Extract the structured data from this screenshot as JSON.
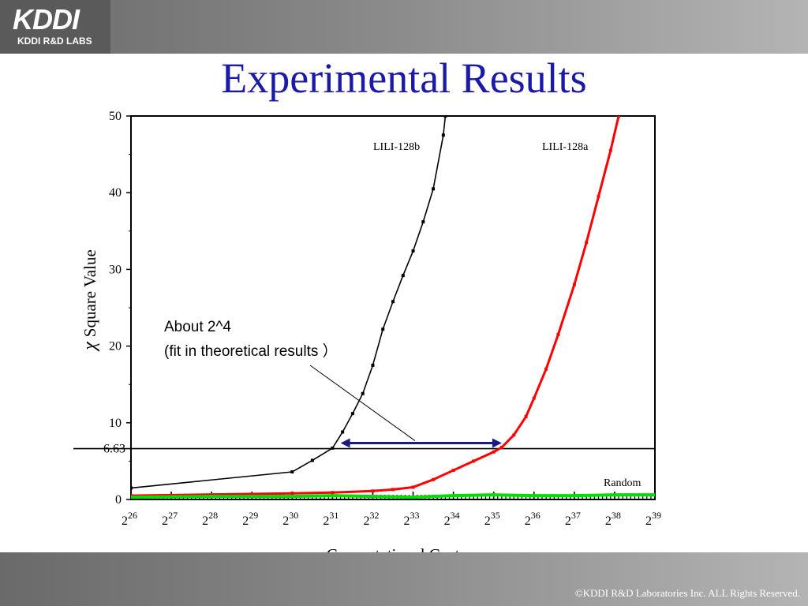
{
  "header": {
    "logo_main": "KDDI",
    "logo_sub": "KDDI R&D LABS",
    "title": "Experimental Results"
  },
  "footer": {
    "copyright": "©KDDI R&D Laboratories Inc. ALL Rights Reserved."
  },
  "chart_data": {
    "type": "line",
    "title": "",
    "xlabel": "Computational Cost",
    "ylabel": "Square Value",
    "ylabel_symbol": "χ",
    "xlim": [
      26,
      39
    ],
    "x_scale": "log2",
    "x_tick_base": "2",
    "x_ticks": [
      26,
      27,
      28,
      29,
      30,
      31,
      32,
      33,
      34,
      35,
      36,
      37,
      38,
      39
    ],
    "ylim": [
      0,
      50
    ],
    "y_ticks": [
      0,
      10,
      20,
      30,
      40,
      50
    ],
    "reference_line": {
      "y": 6.63,
      "label": "6.63"
    },
    "colors": {
      "LILI-128b": "#000000",
      "LILI-128a": "#ff0000",
      "Random": "#00dd00",
      "arrow": "#1a1a80"
    },
    "series": [
      {
        "name": "LILI-128b",
        "x": [
          26,
          30,
          30.5,
          31,
          31.25,
          31.5,
          31.75,
          32,
          32.25,
          32.5,
          32.75,
          33,
          33.25,
          33.5,
          33.75,
          33.8
        ],
        "y": [
          1.5,
          3.6,
          5.1,
          6.7,
          8.8,
          11.2,
          13.8,
          17.5,
          22.2,
          25.8,
          29.2,
          32.4,
          36.2,
          40.5,
          47.5,
          50
        ]
      },
      {
        "name": "LILI-128a",
        "x": [
          26,
          30,
          31,
          32,
          32.5,
          33,
          33.5,
          34,
          34.5,
          35,
          35.2,
          35.5,
          35.8,
          36,
          36.3,
          36.6,
          37,
          37.3,
          37.6,
          37.9,
          38.1
        ],
        "y": [
          0.5,
          0.8,
          0.9,
          1.1,
          1.3,
          1.6,
          2.6,
          3.8,
          5.0,
          6.2,
          6.8,
          8.4,
          10.8,
          13.2,
          17.0,
          21.5,
          28.0,
          33.5,
          39.5,
          45.5,
          50
        ]
      },
      {
        "name": "Random",
        "x": [
          26,
          28,
          30,
          31,
          32,
          33,
          34,
          35,
          36,
          37,
          38,
          39
        ],
        "y": [
          0.3,
          0.4,
          0.4,
          0.5,
          0.4,
          0.3,
          0.5,
          0.6,
          0.5,
          0.5,
          0.6,
          0.6
        ]
      }
    ],
    "annotations": {
      "line1": "About 2^4",
      "line2": "(fit in theoretical results ）",
      "arrow_x": [
        31.2,
        35.2
      ],
      "arrow_y": 6.63
    }
  }
}
